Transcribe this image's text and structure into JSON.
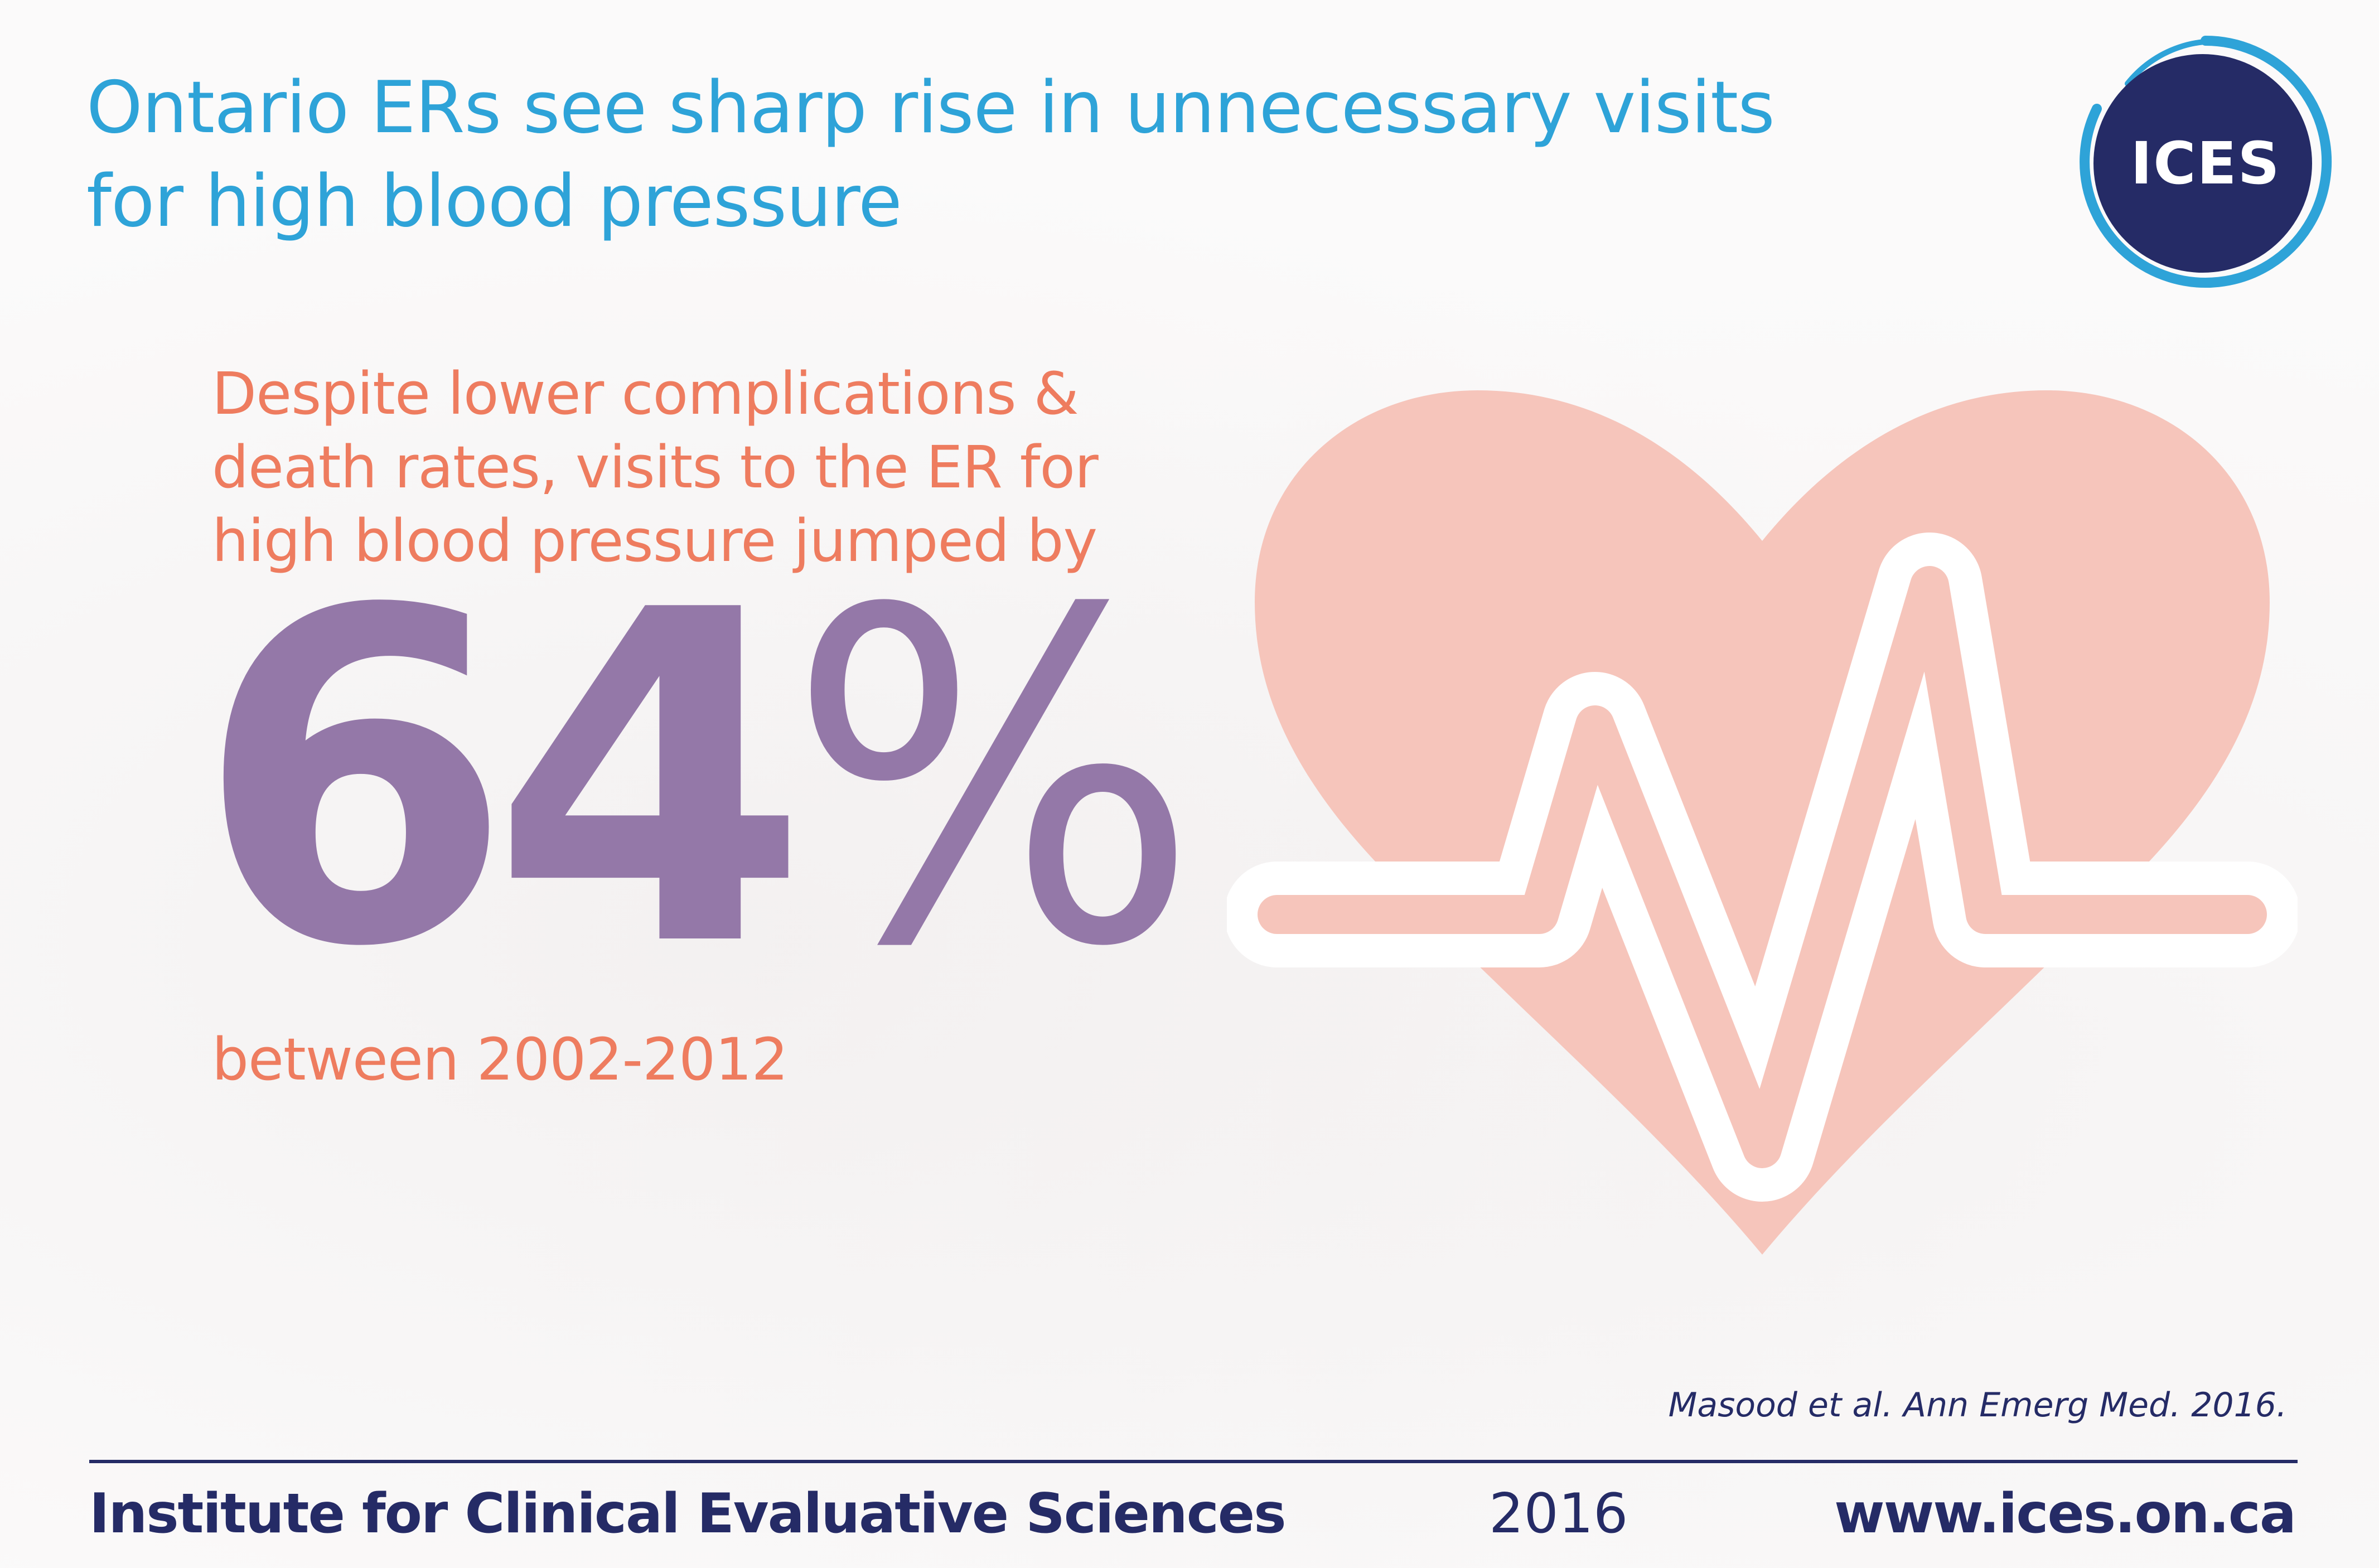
{
  "header": {
    "title_lines": [
      "Ontario ERs see sharp rise in unnecessary visits",
      "for high blood pressure"
    ]
  },
  "logo": {
    "text": "ICES",
    "circle_color": "#252b66",
    "ring_color": "#2ea3d8"
  },
  "main": {
    "lead_lines": [
      "Despite lower complications &",
      "death rates, visits to the ER for",
      "high blood pressure jumped by"
    ],
    "stat_number": "64",
    "stat_unit": "%",
    "period": "between 2002-2012"
  },
  "illustration": {
    "icon": "heartbeat-heart-icon",
    "heart_color": "#f6c5bb",
    "pulse_color": "#ffffff"
  },
  "citation": "Masood et al. Ann Emerg Med. 2016.",
  "footer": {
    "organization": "Institute for Clinical Evaluative Sciences",
    "year": "2016",
    "url": "www.ices.on.ca"
  },
  "colors": {
    "title": "#2ea3d8",
    "lead_text": "#ee7c5f",
    "stat": "#9478a8",
    "footer": "#252b66"
  }
}
